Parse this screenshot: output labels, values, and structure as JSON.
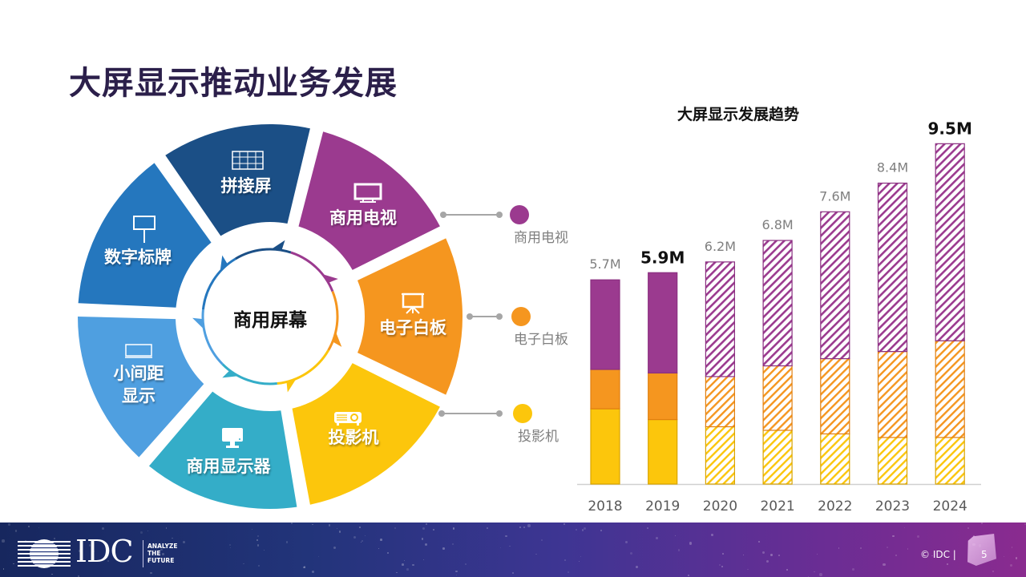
{
  "page": {
    "title": "大屏显示推动业务发展"
  },
  "donut": {
    "center_label": "商用屏幕",
    "segments": [
      {
        "label": "拼接屏",
        "icon": "video-wall-icon",
        "color": "#1b4f86"
      },
      {
        "label": "商用电视",
        "icon": "tv-icon",
        "color": "#9b3a8f"
      },
      {
        "label": "电子白板",
        "icon": "whiteboard-icon",
        "color": "#f5961f"
      },
      {
        "label": "投影机",
        "icon": "projector-icon",
        "color": "#fcc60c"
      },
      {
        "label": "商用显示器",
        "icon": "monitor-icon",
        "color": "#34adc8"
      },
      {
        "label": "小间距显示",
        "label_lines": [
          "小间距",
          "显示"
        ],
        "icon": "led-display-icon",
        "color": "#4f9fe0"
      },
      {
        "label": "数字标牌",
        "icon": "signage-icon",
        "color": "#2577be"
      }
    ]
  },
  "legend": [
    {
      "label": "商用电视",
      "color": "#9b3a8f"
    },
    {
      "label": "电子白板",
      "color": "#f5961f"
    },
    {
      "label": "投影机",
      "color": "#fcc60c"
    }
  ],
  "chart_data": {
    "type": "bar",
    "stacked": true,
    "title": "大屏显示发展趋势",
    "xlabel": "",
    "ylabel": "",
    "unit": "M",
    "ylim": [
      0,
      10
    ],
    "grid": false,
    "categories": [
      "2018",
      "2019",
      "2020",
      "2021",
      "2022",
      "2023",
      "2024"
    ],
    "forecast_from": "2020",
    "series": [
      {
        "name": "投影机",
        "color": "#fcc60c",
        "values": [
          2.1,
          1.8,
          1.6,
          1.5,
          1.4,
          1.3,
          1.3
        ]
      },
      {
        "name": "电子白板",
        "color": "#f5961f",
        "values": [
          1.1,
          1.3,
          1.4,
          1.8,
          2.1,
          2.4,
          2.7
        ]
      },
      {
        "name": "商用电视",
        "color": "#9b3a8f",
        "values": [
          2.5,
          2.8,
          3.2,
          3.5,
          4.1,
          4.7,
          5.5
        ]
      }
    ],
    "totals": [
      5.7,
      5.9,
      6.2,
      6.8,
      7.6,
      8.4,
      9.5
    ],
    "total_labels": [
      "5.7M",
      "5.9M",
      "6.2M",
      "6.8M",
      "7.6M",
      "8.4M",
      "9.5M"
    ],
    "highlighted_labels": [
      "5.9M",
      "9.5M"
    ]
  },
  "footer": {
    "brand": "IDC",
    "tagline": [
      "ANALYZE",
      "THE",
      "FUTURE"
    ],
    "copyright": "© IDC  |",
    "page_number": "5"
  }
}
